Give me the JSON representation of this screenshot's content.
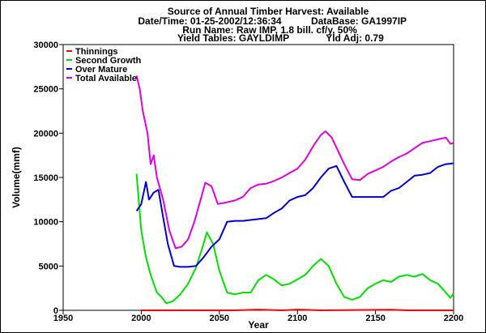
{
  "chart_data": {
    "type": "line",
    "title": "Source of Annual Timber Harvest: Available",
    "subtitle_lines": [
      {
        "label": "Date/Time: 01-25-2002/12:36:34",
        "extra": "DataBase: GA1997IP"
      },
      {
        "label": "Run Name: Raw IMP, 1.8 bill. cf/y, 50%",
        "extra": ""
      },
      {
        "label": "Yield Tables: GAYLDIMP",
        "extra": "Yld Adj: 0.79"
      }
    ],
    "xlabel": "Year",
    "ylabel": "Volume(mmf)",
    "xlim": [
      1950,
      2200
    ],
    "ylim": [
      0,
      30000
    ],
    "xticks": [
      1950,
      2000,
      2050,
      2100,
      2150,
      2200
    ],
    "yticks": [
      0,
      5000,
      10000,
      15000,
      20000,
      25000,
      30000
    ],
    "legend_position": "top-left",
    "series": [
      {
        "name": "Thinnings",
        "color": "#ff0000",
        "points": [
          [
            2000,
            0
          ],
          [
            2060,
            0
          ],
          [
            2075,
            80
          ],
          [
            2090,
            0
          ],
          [
            2100,
            80
          ],
          [
            2115,
            0
          ],
          [
            2160,
            60
          ],
          [
            2170,
            0
          ],
          [
            2200,
            0
          ]
        ]
      },
      {
        "name": "Second Growth",
        "color": "#00dd00",
        "points": [
          [
            1997,
            15400
          ],
          [
            2000,
            9000
          ],
          [
            2003,
            6000
          ],
          [
            2006,
            4000
          ],
          [
            2010,
            2000
          ],
          [
            2013,
            1500
          ],
          [
            2016,
            800
          ],
          [
            2020,
            1000
          ],
          [
            2025,
            1800
          ],
          [
            2030,
            3000
          ],
          [
            2035,
            4800
          ],
          [
            2039,
            7000
          ],
          [
            2042,
            8800
          ],
          [
            2046,
            7500
          ],
          [
            2050,
            4500
          ],
          [
            2055,
            2000
          ],
          [
            2060,
            1800
          ],
          [
            2065,
            2000
          ],
          [
            2070,
            2000
          ],
          [
            2075,
            3400
          ],
          [
            2080,
            4000
          ],
          [
            2085,
            3500
          ],
          [
            2090,
            2800
          ],
          [
            2095,
            3000
          ],
          [
            2100,
            3500
          ],
          [
            2105,
            4000
          ],
          [
            2110,
            5000
          ],
          [
            2115,
            5800
          ],
          [
            2120,
            5000
          ],
          [
            2125,
            3000
          ],
          [
            2130,
            1500
          ],
          [
            2135,
            1200
          ],
          [
            2140,
            1500
          ],
          [
            2145,
            2500
          ],
          [
            2150,
            3000
          ],
          [
            2155,
            3400
          ],
          [
            2160,
            3200
          ],
          [
            2165,
            3800
          ],
          [
            2170,
            4000
          ],
          [
            2175,
            3800
          ],
          [
            2180,
            4100
          ],
          [
            2185,
            3400
          ],
          [
            2190,
            3000
          ],
          [
            2195,
            2000
          ],
          [
            2198,
            1400
          ],
          [
            2200,
            1900
          ]
        ]
      },
      {
        "name": "Over Mature",
        "color": "#0000cc",
        "points": [
          [
            1997,
            11200
          ],
          [
            2000,
            12000
          ],
          [
            2003,
            14500
          ],
          [
            2005,
            12500
          ],
          [
            2008,
            13300
          ],
          [
            2011,
            13600
          ],
          [
            2014,
            10500
          ],
          [
            2017,
            7500
          ],
          [
            2021,
            5000
          ],
          [
            2025,
            4900
          ],
          [
            2030,
            4900
          ],
          [
            2035,
            5000
          ],
          [
            2040,
            6000
          ],
          [
            2045,
            7200
          ],
          [
            2050,
            8000
          ],
          [
            2055,
            10000
          ],
          [
            2060,
            10100
          ],
          [
            2065,
            10100
          ],
          [
            2070,
            10200
          ],
          [
            2075,
            10300
          ],
          [
            2080,
            10400
          ],
          [
            2085,
            11000
          ],
          [
            2090,
            11500
          ],
          [
            2095,
            12400
          ],
          [
            2100,
            12800
          ],
          [
            2105,
            13000
          ],
          [
            2110,
            13800
          ],
          [
            2115,
            15000
          ],
          [
            2120,
            16000
          ],
          [
            2125,
            16300
          ],
          [
            2130,
            14500
          ],
          [
            2135,
            12800
          ],
          [
            2140,
            12800
          ],
          [
            2145,
            12800
          ],
          [
            2150,
            12800
          ],
          [
            2155,
            12800
          ],
          [
            2160,
            13500
          ],
          [
            2165,
            13800
          ],
          [
            2170,
            14500
          ],
          [
            2175,
            15200
          ],
          [
            2180,
            15300
          ],
          [
            2185,
            15500
          ],
          [
            2190,
            16200
          ],
          [
            2195,
            16500
          ],
          [
            2200,
            16600
          ]
        ]
      },
      {
        "name": "Total Available",
        "color": "#dd00dd",
        "points": [
          [
            1997,
            26500
          ],
          [
            1999,
            25000
          ],
          [
            2001,
            22500
          ],
          [
            2004,
            20000
          ],
          [
            2006,
            16500
          ],
          [
            2008,
            17500
          ],
          [
            2010,
            15000
          ],
          [
            2014,
            12500
          ],
          [
            2018,
            9000
          ],
          [
            2022,
            7000
          ],
          [
            2026,
            7200
          ],
          [
            2030,
            8000
          ],
          [
            2034,
            10000
          ],
          [
            2038,
            12500
          ],
          [
            2041,
            14400
          ],
          [
            2045,
            14000
          ],
          [
            2049,
            12000
          ],
          [
            2055,
            12200
          ],
          [
            2060,
            12400
          ],
          [
            2065,
            12800
          ],
          [
            2070,
            13800
          ],
          [
            2075,
            14200
          ],
          [
            2080,
            14300
          ],
          [
            2085,
            14600
          ],
          [
            2090,
            15000
          ],
          [
            2095,
            15500
          ],
          [
            2100,
            16000
          ],
          [
            2105,
            17000
          ],
          [
            2110,
            18500
          ],
          [
            2115,
            19800
          ],
          [
            2118,
            20200
          ],
          [
            2122,
            19500
          ],
          [
            2126,
            18000
          ],
          [
            2130,
            16500
          ],
          [
            2135,
            14800
          ],
          [
            2140,
            14700
          ],
          [
            2145,
            15400
          ],
          [
            2150,
            15800
          ],
          [
            2155,
            16200
          ],
          [
            2160,
            16800
          ],
          [
            2165,
            17300
          ],
          [
            2170,
            17700
          ],
          [
            2175,
            18300
          ],
          [
            2180,
            18900
          ],
          [
            2185,
            19100
          ],
          [
            2190,
            19300
          ],
          [
            2195,
            19500
          ],
          [
            2198,
            18800
          ],
          [
            2200,
            18900
          ]
        ]
      }
    ]
  }
}
